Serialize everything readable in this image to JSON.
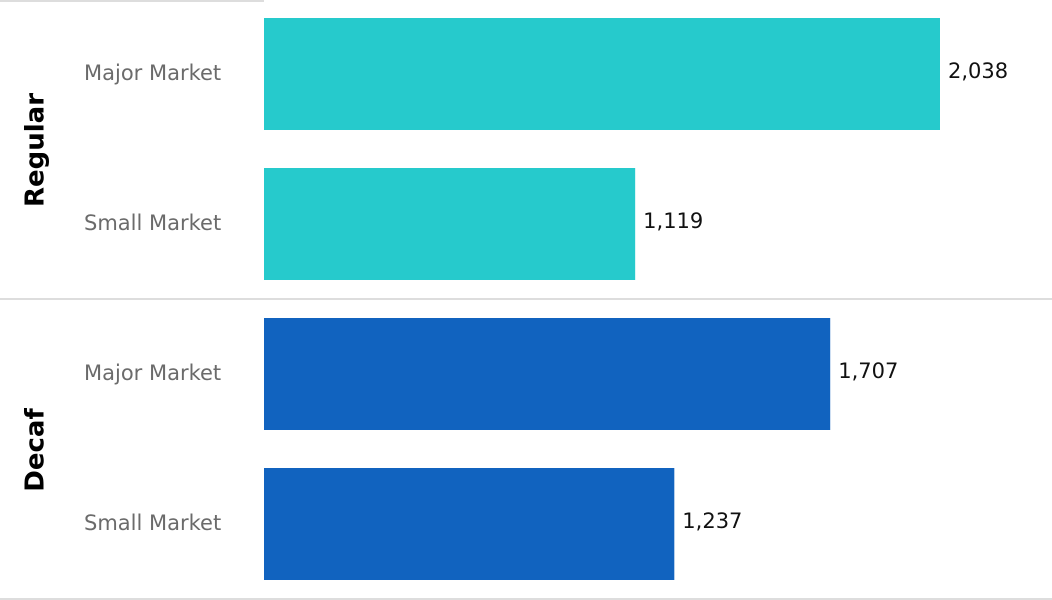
{
  "chart_data": {
    "type": "bar",
    "categories": [
      "Major Market",
      "Small Market"
    ],
    "series": [
      {
        "name": "Regular",
        "color": "#26CACC",
        "values": [
          2038,
          1119
        ],
        "value_labels": [
          "2,038",
          "1,119"
        ]
      },
      {
        "name": "Decaf",
        "color": "#1163BF",
        "values": [
          1707,
          1237
        ],
        "value_labels": [
          "1,707",
          "1,237"
        ]
      }
    ]
  }
}
